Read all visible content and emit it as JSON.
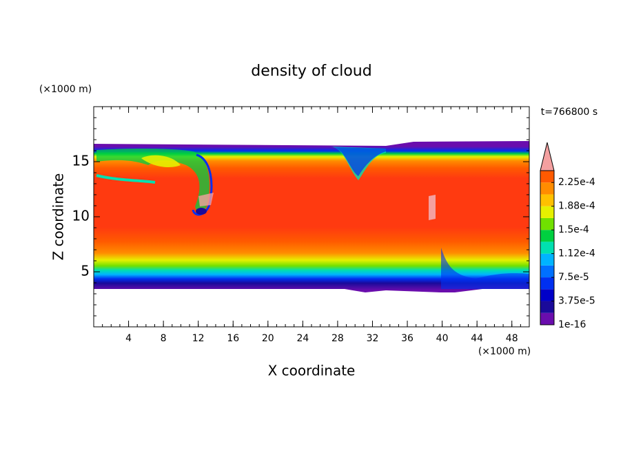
{
  "chart_data": {
    "type": "contour",
    "title": "density of cloud",
    "xlabel": "X coordinate",
    "ylabel": "Z coordinate",
    "x_unit": "(×1000 m)",
    "y_unit": "(×1000 m)",
    "annotation": "t=766800 s",
    "xlim": [
      0,
      50
    ],
    "ylim": [
      0,
      20
    ],
    "xticks": [
      4,
      8,
      12,
      16,
      20,
      24,
      28,
      32,
      36,
      40,
      44,
      48
    ],
    "yticks": [
      5,
      10,
      15
    ],
    "colorbar": {
      "clim": [
        1e-16,
        0.00024375
      ],
      "colors": [
        "#6a0dad",
        "#1a0a9a",
        "#0000c8",
        "#0030f0",
        "#0070ff",
        "#00b4ff",
        "#00e0b0",
        "#00d040",
        "#70e000",
        "#e6f000",
        "#ffc000",
        "#ff8c00",
        "#ff5a00"
      ],
      "extend_color": "#f4a0a0",
      "ticks": [
        {
          "value": 1e-16,
          "label": "1e-16"
        },
        {
          "value": 3.75e-05,
          "label": "3.75e-5"
        },
        {
          "value": 7.5e-05,
          "label": "7.5e-5"
        },
        {
          "value": 0.0001125,
          "label": "1.12e-4"
        },
        {
          "value": 0.00015,
          "label": "1.5e-4"
        },
        {
          "value": 0.0001875,
          "label": "1.88e-4"
        },
        {
          "value": 0.000225,
          "label": "2.25e-4"
        }
      ]
    }
  }
}
